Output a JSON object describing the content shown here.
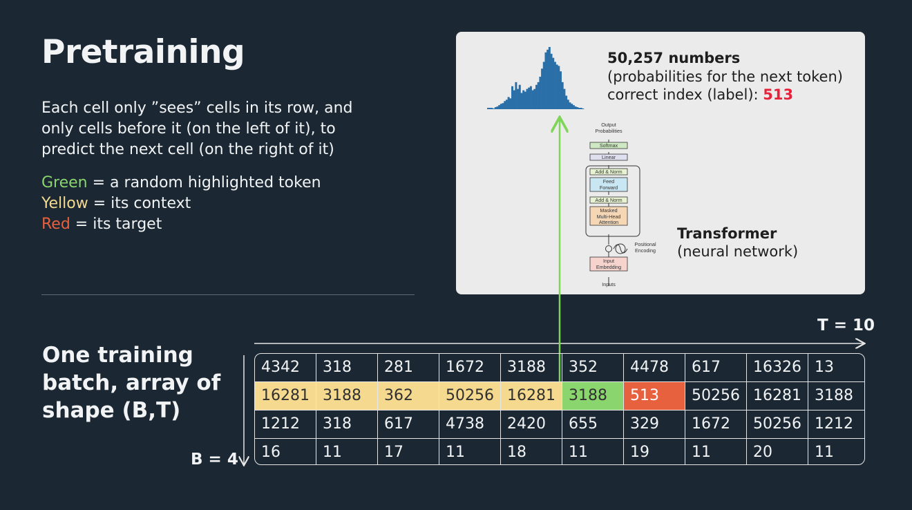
{
  "title": "Pretraining",
  "description": "Each cell only ”sees” cells in its row, and only cells before it (on the left of it), to predict the next cell (on the right of it)",
  "legend": [
    {
      "term": "Green",
      "text": " = a random highlighted token",
      "color": "#8ad56d"
    },
    {
      "term": "Yellow",
      "text": " = its context",
      "color": "#f4d98e"
    },
    {
      "term": "Red",
      "text": " = its target",
      "color": "#e8613f"
    }
  ],
  "batch_label": "One training batch, array of shape (B,T)",
  "probabilities": {
    "title": "50,257 numbers",
    "line1": "(probabilities for the next token)",
    "line2_prefix": "correct index (label): ",
    "label_value": "513"
  },
  "transformer": {
    "title": "Transformer",
    "subtitle": "(neural network)",
    "diagram_labels": {
      "output": "Output",
      "probabilities": "Probabilities",
      "softmax": "Softmax",
      "linear": "Linear",
      "add_norm": "Add & Norm",
      "feed": "Feed",
      "forward": "Forward",
      "masked": "Masked",
      "multihead": "Multi-Head",
      "attention": "Attention",
      "positional": "Positional",
      "encoding": "Encoding",
      "input": "Input",
      "embedding": "Embedding",
      "inputs": "Inputs"
    }
  },
  "histogram": [
    2,
    2,
    2,
    1,
    3,
    4,
    6,
    8,
    9,
    12,
    14,
    18,
    16,
    34,
    28,
    40,
    30,
    36,
    24,
    28,
    26,
    30,
    32,
    34,
    28,
    30,
    36,
    40,
    48,
    60,
    70,
    84,
    88,
    92,
    82,
    76,
    70,
    66,
    64,
    56,
    40,
    30,
    20,
    14,
    10,
    8,
    6,
    4,
    3,
    2,
    2,
    1
  ],
  "axes": {
    "t_label": "T = 10",
    "b_label": "B = 4"
  },
  "grid": {
    "rows": [
      [
        "4342",
        "318",
        "281",
        "1672",
        "3188",
        "352",
        "4478",
        "617",
        "16326",
        "13"
      ],
      [
        "16281",
        "3188",
        "362",
        "50256",
        "16281",
        "3188",
        "513",
        "50256",
        "16281",
        "3188"
      ],
      [
        "1212",
        "318",
        "617",
        "4738",
        "2420",
        "655",
        "329",
        "1672",
        "50256",
        "1212"
      ],
      [
        "16",
        "11",
        "17",
        "11",
        "18",
        "11",
        "19",
        "11",
        "20",
        "11"
      ]
    ],
    "highlight_row": 1,
    "context_cols": [
      0,
      1,
      2,
      3,
      4
    ],
    "current_col": 5,
    "target_col": 6
  },
  "colors": {
    "background": "#1b2833",
    "green": "#8ad56d",
    "yellow": "#f4d98e",
    "red": "#e8613f",
    "histogram_bar": "#2a6fa8",
    "arrow_green": "#7fd55a"
  }
}
